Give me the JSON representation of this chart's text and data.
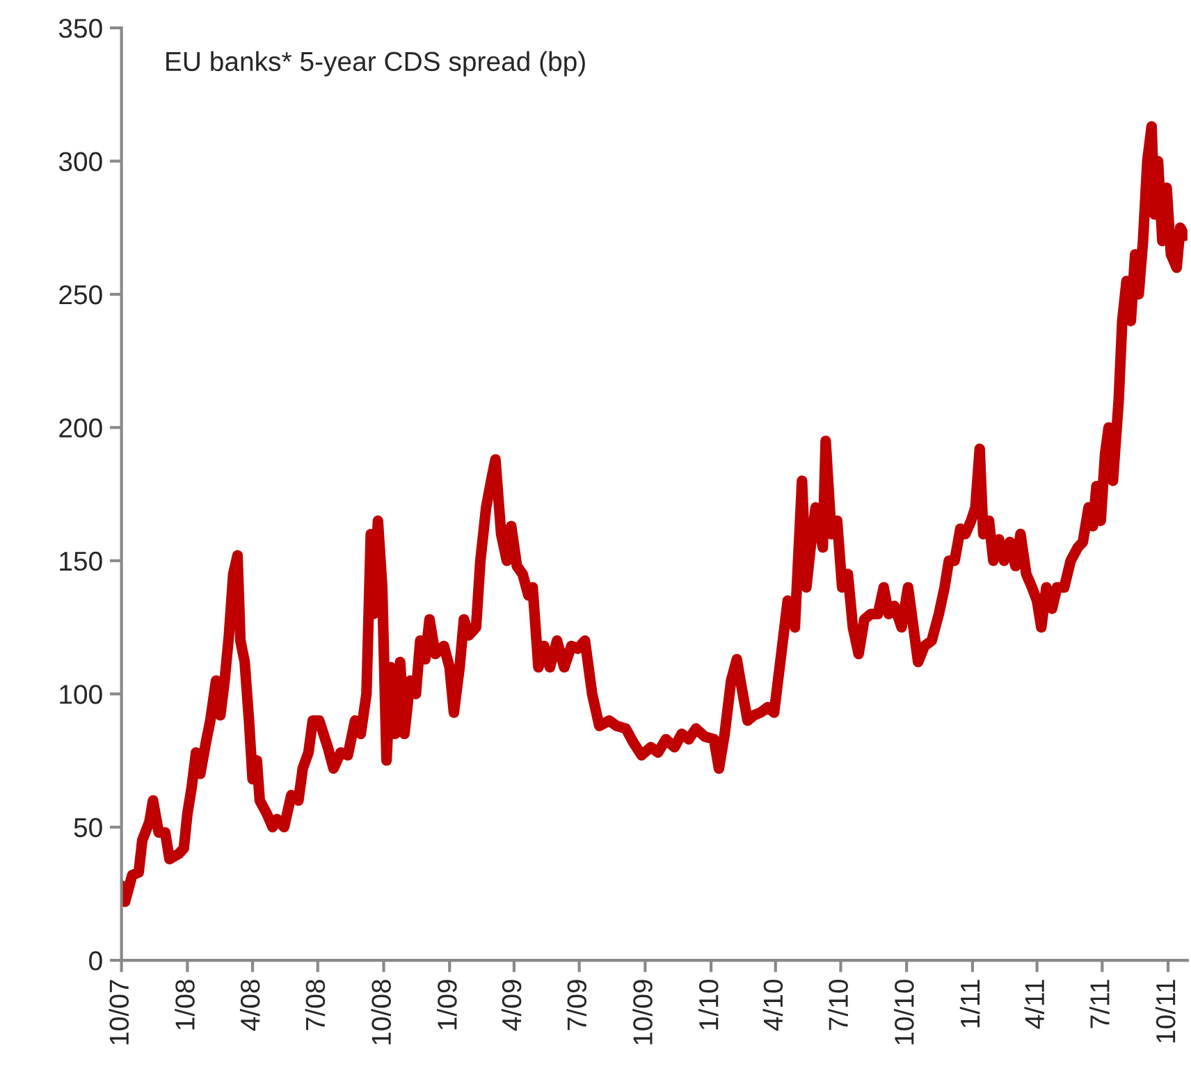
{
  "chart_data": {
    "type": "line",
    "title": "EU banks* 5-year CDS spread (bp)",
    "x": [
      "2007-10-01",
      "2007-10-06",
      "2007-10-16",
      "2007-10-25",
      "2007-10-30",
      "2007-11-09",
      "2007-11-14",
      "2007-11-22",
      "2007-12-01",
      "2007-12-07",
      "2007-12-20",
      "2007-12-27",
      "2008-01-01",
      "2008-01-07",
      "2008-01-13",
      "2008-01-19",
      "2008-01-27",
      "2008-02-02",
      "2008-02-10",
      "2008-02-16",
      "2008-02-22",
      "2008-02-28",
      "2008-03-05",
      "2008-03-11",
      "2008-03-15",
      "2008-03-21",
      "2008-03-27",
      "2008-04-01",
      "2008-04-07",
      "2008-04-11",
      "2008-04-21",
      "2008-04-29",
      "2008-05-05",
      "2008-05-15",
      "2008-05-25",
      "2008-06-04",
      "2008-06-10",
      "2008-06-18",
      "2008-06-24",
      "2008-07-03",
      "2008-07-15",
      "2008-07-23",
      "2008-08-02",
      "2008-08-12",
      "2008-08-22",
      "2008-08-30",
      "2008-09-07",
      "2008-09-13",
      "2008-09-17",
      "2008-09-23",
      "2008-09-29",
      "2008-10-05",
      "2008-10-11",
      "2008-10-17",
      "2008-10-24",
      "2008-10-30",
      "2008-11-07",
      "2008-11-15",
      "2008-11-21",
      "2008-11-28",
      "2008-12-04",
      "2008-12-12",
      "2008-12-24",
      "2009-01-01",
      "2009-01-07",
      "2009-01-15",
      "2009-01-21",
      "2009-01-28",
      "2009-02-07",
      "2009-02-13",
      "2009-02-21",
      "2009-02-28",
      "2009-03-06",
      "2009-03-14",
      "2009-03-22",
      "2009-03-28",
      "2009-04-05",
      "2009-04-13",
      "2009-04-21",
      "2009-04-27",
      "2009-05-05",
      "2009-05-13",
      "2009-05-21",
      "2009-05-31",
      "2009-06-10",
      "2009-06-20",
      "2009-06-29",
      "2009-07-09",
      "2009-07-19",
      "2009-07-29",
      "2009-08-12",
      "2009-08-22",
      "2009-09-04",
      "2009-09-14",
      "2009-09-26",
      "2009-10-09",
      "2009-10-19",
      "2009-10-30",
      "2009-11-11",
      "2009-11-21",
      "2009-12-01",
      "2009-12-11",
      "2009-12-23",
      "2010-01-05",
      "2010-01-12",
      "2010-01-20",
      "2010-01-29",
      "2010-02-06",
      "2010-02-11",
      "2010-02-21",
      "2010-03-02",
      "2010-03-11",
      "2010-03-21",
      "2010-03-30",
      "2010-04-09",
      "2010-04-18",
      "2010-04-28",
      "2010-05-08",
      "2010-05-14",
      "2010-05-22",
      "2010-05-27",
      "2010-06-06",
      "2010-06-10",
      "2010-06-18",
      "2010-06-26",
      "2010-07-03",
      "2010-07-11",
      "2010-07-18",
      "2010-07-26",
      "2010-08-03",
      "2010-08-12",
      "2010-08-22",
      "2010-08-30",
      "2010-09-06",
      "2010-09-14",
      "2010-09-24",
      "2010-10-03",
      "2010-10-09",
      "2010-10-17",
      "2010-10-26",
      "2010-11-05",
      "2010-11-15",
      "2010-11-23",
      "2010-11-29",
      "2010-12-07",
      "2010-12-15",
      "2010-12-22",
      "2010-12-30",
      "2011-01-05",
      "2011-01-11",
      "2011-01-16",
      "2011-01-24",
      "2011-01-30",
      "2011-02-07",
      "2011-02-14",
      "2011-02-22",
      "2011-03-02",
      "2011-03-09",
      "2011-03-17",
      "2011-03-25",
      "2011-04-01",
      "2011-04-07",
      "2011-04-14",
      "2011-04-22",
      "2011-04-29",
      "2011-05-09",
      "2011-05-18",
      "2011-05-28",
      "2011-06-04",
      "2011-06-12",
      "2011-06-18",
      "2011-06-23",
      "2011-06-29",
      "2011-07-05",
      "2011-07-10",
      "2011-07-16",
      "2011-07-24",
      "2011-07-29",
      "2011-08-04",
      "2011-08-10",
      "2011-08-16",
      "2011-08-21",
      "2011-08-27",
      "2011-09-02",
      "2011-09-08",
      "2011-09-12",
      "2011-09-17",
      "2011-09-23",
      "2011-09-29",
      "2011-10-05",
      "2011-10-13",
      "2011-10-18",
      "2011-10-24"
    ],
    "series": [
      {
        "color": "#c00000",
        "values": [
          28,
          22,
          32,
          33,
          45,
          52,
          60,
          48,
          48,
          38,
          40,
          42,
          55,
          65,
          78,
          70,
          82,
          90,
          105,
          92,
          105,
          122,
          145,
          152,
          120,
          112,
          90,
          68,
          75,
          60,
          55,
          50,
          53,
          50,
          62,
          60,
          72,
          78,
          90,
          90,
          80,
          72,
          78,
          77,
          90,
          85,
          100,
          160,
          130,
          165,
          140,
          75,
          110,
          85,
          112,
          85,
          105,
          100,
          120,
          113,
          128,
          115,
          118,
          110,
          93,
          110,
          128,
          122,
          125,
          150,
          170,
          180,
          188,
          160,
          150,
          163,
          148,
          145,
          137,
          140,
          110,
          118,
          110,
          120,
          110,
          118,
          117,
          120,
          100,
          88,
          90,
          88,
          87,
          82,
          77,
          80,
          78,
          83,
          80,
          85,
          83,
          87,
          84,
          83,
          72,
          85,
          105,
          113,
          105,
          90,
          92,
          93,
          95,
          93,
          115,
          135,
          125,
          180,
          140,
          160,
          170,
          155,
          195,
          160,
          165,
          140,
          145,
          125,
          115,
          128,
          130,
          130,
          140,
          130,
          133,
          125,
          140,
          128,
          112,
          118,
          120,
          130,
          140,
          150,
          150,
          162,
          160,
          165,
          170,
          192,
          160,
          165,
          150,
          158,
          150,
          157,
          148,
          160,
          145,
          140,
          135,
          125,
          140,
          132,
          140,
          140,
          150,
          155,
          157,
          170,
          163,
          178,
          165,
          190,
          200,
          180,
          210,
          240,
          255,
          240,
          265,
          250,
          270,
          300,
          313,
          280,
          300,
          270,
          290,
          265,
          260,
          275,
          272
        ]
      }
    ],
    "xlim": [
      "2007-10-01",
      "2011-10-28"
    ],
    "xticks": [
      {
        "value": "2007-10-01",
        "label": "10/07"
      },
      {
        "value": "2008-01-01",
        "label": "1/08"
      },
      {
        "value": "2008-04-01",
        "label": "4/08"
      },
      {
        "value": "2008-07-01",
        "label": "7/08"
      },
      {
        "value": "2008-10-01",
        "label": "10/08"
      },
      {
        "value": "2009-01-01",
        "label": "1/09"
      },
      {
        "value": "2009-04-01",
        "label": "4/09"
      },
      {
        "value": "2009-07-01",
        "label": "7/09"
      },
      {
        "value": "2009-10-01",
        "label": "10/09"
      },
      {
        "value": "2010-01-01",
        "label": "1/10"
      },
      {
        "value": "2010-04-01",
        "label": "4/10"
      },
      {
        "value": "2010-07-01",
        "label": "7/10"
      },
      {
        "value": "2010-10-01",
        "label": "10/10"
      },
      {
        "value": "2011-01-01",
        "label": "1/11"
      },
      {
        "value": "2011-04-01",
        "label": "4/11"
      },
      {
        "value": "2011-07-01",
        "label": "7/11"
      },
      {
        "value": "2011-10-01",
        "label": "10/11"
      }
    ],
    "ylim": [
      0,
      350
    ],
    "yticks": [
      0,
      50,
      100,
      150,
      200,
      250,
      300,
      350
    ],
    "grid": false,
    "legend": false,
    "line_style": "solid",
    "marker": "none"
  }
}
